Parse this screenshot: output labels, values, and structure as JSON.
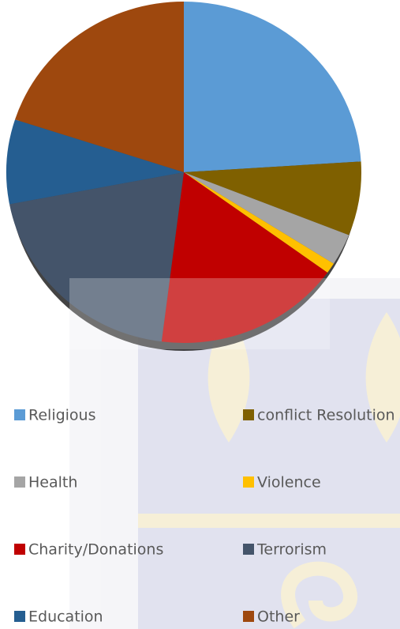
{
  "chart_data": {
    "type": "pie",
    "categories": [
      "Religious",
      "conflict Resolution",
      "Health",
      "Violence",
      "Charity/Donations",
      "Terrorism",
      "Education",
      "Other"
    ],
    "values": [
      24,
      7,
      3,
      1,
      17,
      20,
      8,
      20
    ],
    "colors": [
      "#5b9bd5",
      "#7f6000",
      "#a5a5a5",
      "#ffc000",
      "#c00000",
      "#44546a",
      "#255e91",
      "#9e480e"
    ],
    "legend": "bottom"
  }
}
